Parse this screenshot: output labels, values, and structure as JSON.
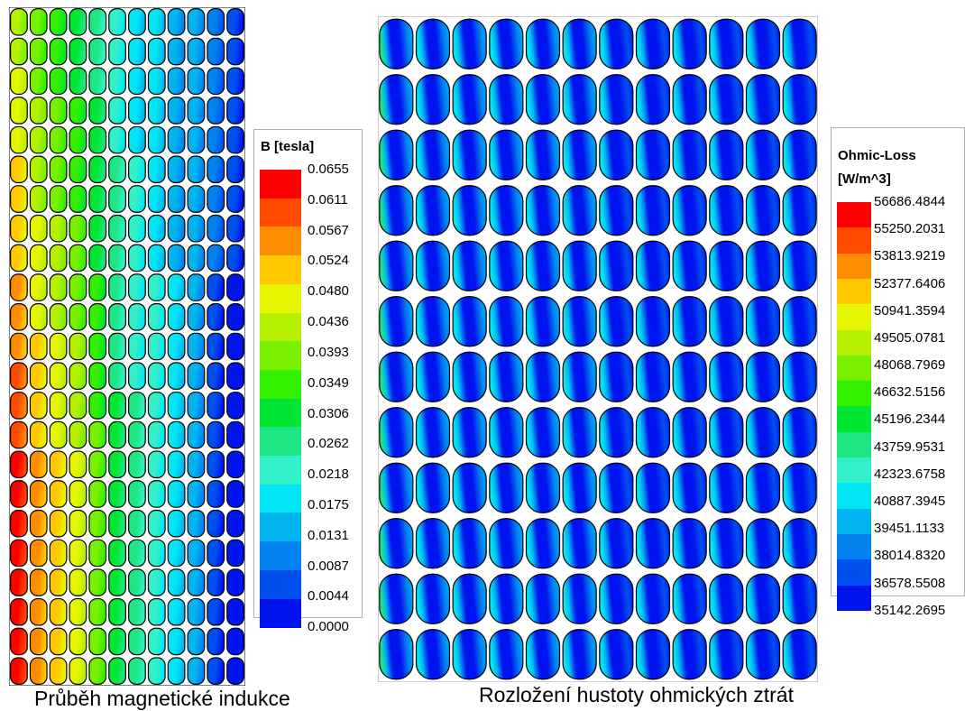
{
  "legend_b": {
    "title": "B [tesla]",
    "labels": [
      "0.0655",
      "0.0611",
      "0.0567",
      "0.0524",
      "0.0480",
      "0.0436",
      "0.0393",
      "0.0349",
      "0.0306",
      "0.0262",
      "0.0218",
      "0.0175",
      "0.0131",
      "0.0087",
      "0.0044",
      "0.0000"
    ]
  },
  "legend_ohmic": {
    "title_line1": "Ohmic-Loss",
    "title_line2": "[W/m^3]",
    "labels": [
      "56686.4844",
      "55250.2031",
      "53813.9219",
      "52377.6406",
      "50941.3594",
      "49505.0781",
      "48068.7969",
      "46632.5156",
      "45196.2344",
      "43759.9531",
      "42323.6758",
      "40887.3945",
      "39451.1133",
      "38014.8320",
      "36578.5508",
      "35142.2695"
    ]
  },
  "colormap": [
    "#ff0000",
    "#ff4a00",
    "#ff8c00",
    "#ffc800",
    "#e6f500",
    "#b4f000",
    "#78f000",
    "#32f000",
    "#00e632",
    "#1ee682",
    "#32f0c8",
    "#00e6f5",
    "#00b4f0",
    "#0082f0",
    "#0050f0",
    "#0014f0"
  ],
  "captions": {
    "left": "Průběh magnetické indukce",
    "right": "Rozložení hustoty ohmických ztrát"
  }
}
